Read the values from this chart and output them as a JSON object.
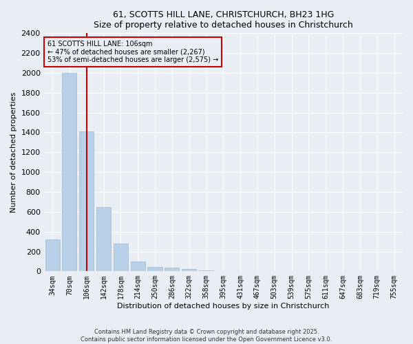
{
  "title1": "61, SCOTTS HILL LANE, CHRISTCHURCH, BH23 1HG",
  "title2": "Size of property relative to detached houses in Christchurch",
  "xlabel": "Distribution of detached houses by size in Christchurch",
  "ylabel": "Number of detached properties",
  "categories": [
    "34sqm",
    "70sqm",
    "106sqm",
    "142sqm",
    "178sqm",
    "214sqm",
    "250sqm",
    "286sqm",
    "322sqm",
    "358sqm",
    "395sqm",
    "431sqm",
    "467sqm",
    "503sqm",
    "539sqm",
    "575sqm",
    "611sqm",
    "647sqm",
    "683sqm",
    "719sqm",
    "755sqm"
  ],
  "values": [
    320,
    2000,
    1410,
    650,
    280,
    100,
    45,
    35,
    20,
    12,
    0,
    0,
    0,
    0,
    0,
    0,
    0,
    0,
    0,
    0,
    0
  ],
  "bar_color": "#b8d0e8",
  "bar_edge_color": "#9ab8d0",
  "vline_x": 2,
  "vline_color": "#cc0000",
  "annotation_title": "61 SCOTTS HILL LANE: 106sqm",
  "annotation_line1": "← 47% of detached houses are smaller (2,267)",
  "annotation_line2": "53% of semi-detached houses are larger (2,575) →",
  "box_color": "#cc0000",
  "ylim": [
    0,
    2400
  ],
  "yticks": [
    0,
    200,
    400,
    600,
    800,
    1000,
    1200,
    1400,
    1600,
    1800,
    2000,
    2200,
    2400
  ],
  "footer1": "Contains HM Land Registry data © Crown copyright and database right 2025.",
  "footer2": "Contains public sector information licensed under the Open Government Licence v3.0.",
  "bg_color": "#e8eef4",
  "plot_bg_color": "#e8eef4",
  "grid_color": "#ffffff"
}
